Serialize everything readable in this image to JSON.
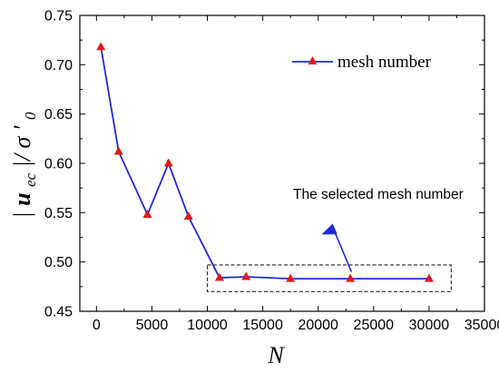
{
  "chart_data": {
    "type": "line",
    "title": "",
    "xlabel": "N",
    "ylabel": "|u_ec|/σ'_0",
    "ylabel_parts": {
      "open_bar": "|",
      "u": "u",
      "ec": "ec",
      "close_bar": "|/",
      "sigma": "σ",
      "prime": "′",
      "zero": "0"
    },
    "xlim": [
      -1500,
      35000
    ],
    "ylim": [
      0.45,
      0.75
    ],
    "xticks": [
      0,
      5000,
      10000,
      15000,
      20000,
      25000,
      30000,
      35000
    ],
    "xtick_labels": [
      "0",
      "5000",
      "10000",
      "15000",
      "20000",
      "25000",
      "30000",
      "35000"
    ],
    "yticks": [
      0.45,
      0.5,
      0.55,
      0.6,
      0.65,
      0.7,
      0.75
    ],
    "ytick_labels": [
      "0.45",
      "0.50",
      "0.55",
      "0.60",
      "0.65",
      "0.70",
      "0.75"
    ],
    "grid": false,
    "legend_position": "top-right",
    "series": [
      {
        "name": "mesh number",
        "color": "#1f2bd9",
        "marker_color": "#e01818",
        "marker": "triangle",
        "x": [
          400,
          2000,
          4600,
          6500,
          8300,
          11100,
          13500,
          17500,
          22900,
          30000
        ],
        "y": [
          0.718,
          0.612,
          0.548,
          0.6,
          0.546,
          0.484,
          0.485,
          0.483,
          0.483,
          0.483
        ]
      }
    ],
    "annotations": [
      {
        "text": "The selected mesh number",
        "box_x": [
          10000,
          32000
        ],
        "box_y": [
          0.47,
          0.497
        ],
        "arrow_from": [
          23000,
          0.49
        ],
        "arrow_to": [
          21400,
          0.533
        ],
        "label_anchor": [
          3000,
          0.552
        ]
      }
    ]
  }
}
